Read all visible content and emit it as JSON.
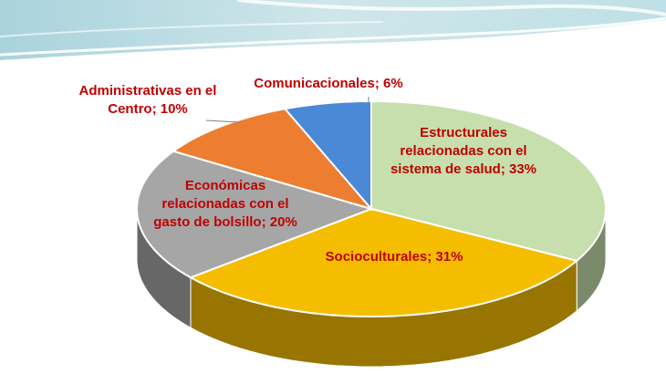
{
  "chart_data": {
    "type": "pie",
    "style": "3d",
    "categories": [
      "Estructurales relacionadas con el sistema de salud",
      "Socioculturales",
      "Económicas relacionadas con el gasto de bolsillo",
      "Administrativas en el Centro",
      "Comunicacionales"
    ],
    "values": [
      33,
      31,
      20,
      10,
      6
    ],
    "unit": "%",
    "colors": [
      "#c6dfad",
      "#f5bd00",
      "#a6a6a6",
      "#ed7d31",
      "#4a89d6"
    ],
    "label_color": "#c00000",
    "data_labels": [
      [
        "Estructurales",
        "relacionadas  con el",
        "sistema de salud; 33%"
      ],
      [
        "Socioculturales; 31%"
      ],
      [
        "Económicas",
        "relacionadas  con el",
        "gasto de bolsillo; 20%"
      ],
      [
        "Administrativas  en el",
        "Centro; 10%"
      ],
      [
        "Comunicacionales; 6%"
      ]
    ]
  }
}
